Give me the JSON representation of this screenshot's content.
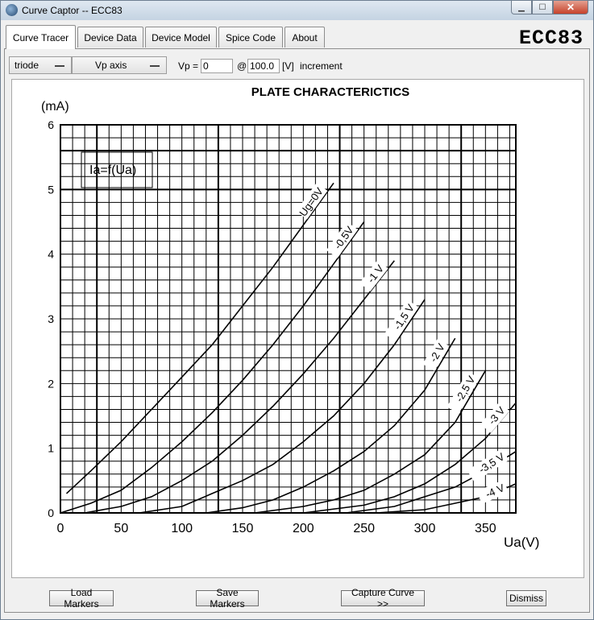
{
  "window": {
    "title": "Curve Captor -- ECC83",
    "min_symbol": "▁",
    "max_symbol": "☐",
    "close_symbol": "✕"
  },
  "tabs": [
    {
      "label": "Curve Tracer",
      "active": true
    },
    {
      "label": "Device Data",
      "active": false
    },
    {
      "label": "Device Model",
      "active": false
    },
    {
      "label": "Spice Code",
      "active": false
    },
    {
      "label": "About",
      "active": false
    }
  ],
  "device_label": "ECC83",
  "toolbar": {
    "device_type": "triode",
    "axis_select": "Vp axis",
    "vp_label": "Vp =",
    "vp_value": "0",
    "at_label": "@",
    "step_value": "100.0",
    "unit_label": "[V]",
    "increment_label": "increment"
  },
  "chart_data": {
    "type": "line",
    "title": "PLATE CHARACTERICTICS",
    "xlabel": "Ua(V)",
    "ylabel": "(mA)",
    "formula_label": "Ia=f(Ua)",
    "xlim": [
      0,
      375
    ],
    "ylim": [
      0,
      6
    ],
    "x_ticks": [
      0,
      50,
      100,
      150,
      200,
      250,
      300,
      350
    ],
    "y_ticks": [
      0,
      1,
      2,
      3,
      4,
      5,
      6
    ],
    "grid": true,
    "series": [
      {
        "name": "Ug=0V",
        "x": [
          5,
          25,
          50,
          75,
          100,
          125,
          150,
          175,
          200,
          225
        ],
        "y": [
          0.3,
          0.65,
          1.1,
          1.6,
          2.1,
          2.6,
          3.2,
          3.8,
          4.45,
          5.1
        ]
      },
      {
        "name": "-0,5V",
        "x": [
          0,
          25,
          50,
          75,
          100,
          125,
          150,
          175,
          200,
          225,
          250
        ],
        "y": [
          0.0,
          0.15,
          0.35,
          0.7,
          1.1,
          1.55,
          2.05,
          2.6,
          3.2,
          3.85,
          4.5
        ]
      },
      {
        "name": "-1 V",
        "x": [
          20,
          50,
          75,
          100,
          125,
          150,
          175,
          200,
          225,
          250,
          275
        ],
        "y": [
          0.0,
          0.1,
          0.25,
          0.5,
          0.8,
          1.2,
          1.65,
          2.15,
          2.7,
          3.3,
          3.9
        ]
      },
      {
        "name": "-1,5 V",
        "x": [
          65,
          100,
          125,
          150,
          175,
          200,
          225,
          250,
          275,
          300
        ],
        "y": [
          0.0,
          0.1,
          0.3,
          0.5,
          0.75,
          1.1,
          1.5,
          2.0,
          2.6,
          3.3
        ]
      },
      {
        "name": "-2 V",
        "x": [
          120,
          150,
          175,
          200,
          225,
          250,
          275,
          300,
          325
        ],
        "y": [
          0.0,
          0.08,
          0.2,
          0.4,
          0.65,
          0.95,
          1.35,
          1.9,
          2.7
        ]
      },
      {
        "name": "-2,5 V",
        "x": [
          160,
          200,
          225,
          250,
          275,
          300,
          325,
          350
        ],
        "y": [
          0.0,
          0.1,
          0.2,
          0.35,
          0.6,
          0.9,
          1.4,
          2.2
        ]
      },
      {
        "name": "-3 V",
        "x": [
          200,
          250,
          275,
          300,
          325,
          350,
          375
        ],
        "y": [
          0.0,
          0.12,
          0.25,
          0.45,
          0.75,
          1.15,
          1.7
        ]
      },
      {
        "name": "-3,5 V",
        "x": [
          235,
          275,
          300,
          325,
          350,
          375
        ],
        "y": [
          0.0,
          0.1,
          0.25,
          0.4,
          0.65,
          0.95
        ]
      },
      {
        "name": "-4 V",
        "x": [
          260,
          300,
          325,
          350,
          375
        ],
        "y": [
          0.0,
          0.05,
          0.15,
          0.25,
          0.45
        ]
      }
    ]
  },
  "footer": {
    "load_markers": "Load Markers",
    "save_markers": "Save Markers",
    "capture_curve": "Capture Curve >>",
    "dismiss": "Dismiss"
  }
}
